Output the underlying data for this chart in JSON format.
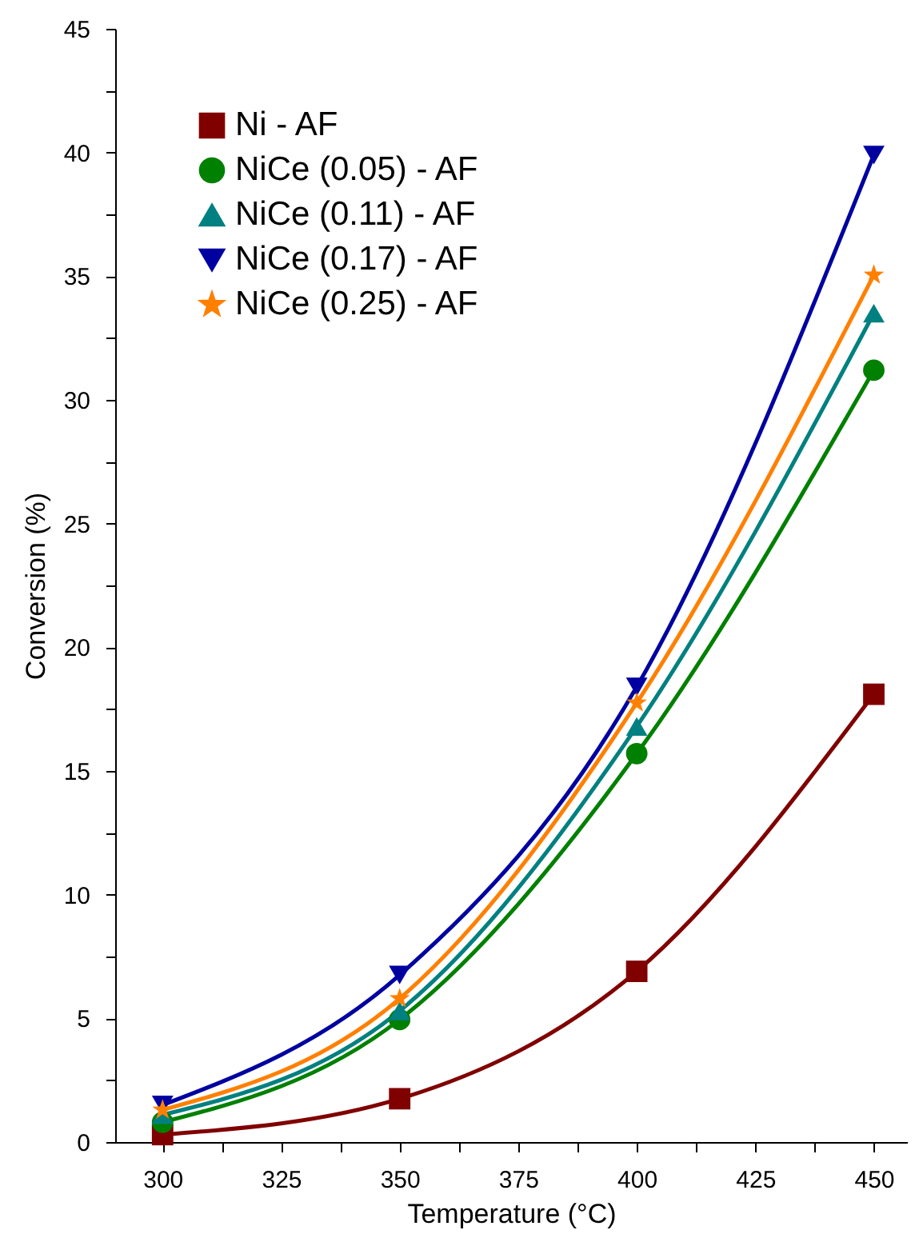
{
  "chart_data": {
    "type": "line",
    "xlabel": "Temperature (°C)",
    "ylabel": "Conversion (%)",
    "x": [
      300,
      350,
      400,
      450
    ],
    "series": [
      {
        "name": "Ni - AF",
        "color": "#800000",
        "marker": "square",
        "values": [
          0.3,
          1.75,
          6.9,
          18.1
        ]
      },
      {
        "name": "NiCe (0.05) - AF",
        "color": "#008000",
        "marker": "circle",
        "values": [
          0.8,
          4.95,
          15.7,
          31.2
        ]
      },
      {
        "name": "NiCe (0.11) - AF",
        "color": "#008080",
        "marker": "triangle",
        "values": [
          1.1,
          5.3,
          16.8,
          33.5
        ]
      },
      {
        "name": "NiCe (0.17) - AF",
        "color": "#0000a0",
        "marker": "triangle-down",
        "values": [
          1.5,
          6.75,
          18.4,
          39.9
        ]
      },
      {
        "name": "NiCe (0.25) - AF",
        "color": "#ff8000",
        "marker": "star",
        "values": [
          1.3,
          5.8,
          17.75,
          35.05
        ]
      }
    ],
    "xlim": [
      290,
      457
    ],
    "ylim": [
      0,
      45
    ],
    "xticks": [
      300,
      {
        "value": 312.5,
        "label": null
      },
      325,
      {
        "value": 337.5,
        "label": null
      },
      350,
      {
        "value": 362.5,
        "label": null
      },
      375,
      {
        "value": 387.5,
        "label": null
      },
      400,
      {
        "value": 412.5,
        "label": null
      },
      425,
      {
        "value": 437.5,
        "label": null
      },
      450
    ],
    "yticks": [
      0,
      {
        "value": 2.5,
        "label": null
      },
      5,
      {
        "value": 7.5,
        "label": null
      },
      10,
      {
        "value": 12.5,
        "label": null
      },
      15,
      {
        "value": 17.5,
        "label": null
      },
      20,
      {
        "value": 22.5,
        "label": null
      },
      25,
      {
        "value": 27.5,
        "label": null
      },
      30,
      {
        "value": 32.5,
        "label": null
      },
      35,
      {
        "value": 37.5,
        "label": null
      },
      40,
      {
        "value": 42.5,
        "label": null
      },
      45
    ],
    "legend": "top left",
    "grid": false,
    "line_style": "solid"
  }
}
